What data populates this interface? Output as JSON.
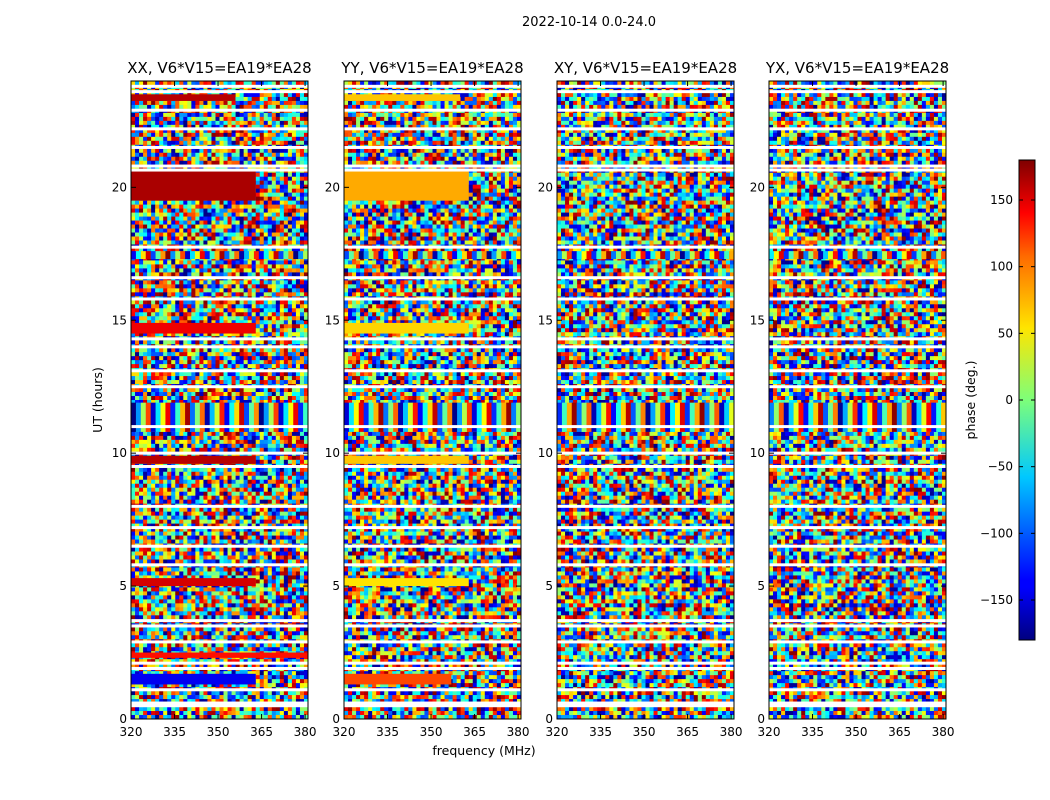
{
  "chart_data": {
    "type": "heatmap",
    "suptitle": "2022-10-14 0.0-24.0",
    "xlabel": "frequency (MHz)",
    "ylabel": "UT (hours)",
    "xlim": [
      320,
      381
    ],
    "ylim": [
      0,
      24
    ],
    "xticks": [
      "320",
      "335",
      "350",
      "365",
      "380"
    ],
    "yticks": [
      "0",
      "5",
      "10",
      "15",
      "20"
    ],
    "xtick_values": [
      320,
      335,
      350,
      365,
      380
    ],
    "ytick_values": [
      0,
      5,
      10,
      15,
      20
    ],
    "panels": [
      {
        "title": "XX, V6*V15=EA19*EA28",
        "coherent_phase_bands": [
          {
            "t0": 23.25,
            "t1": 23.5,
            "f1": 356,
            "phase": 160
          },
          {
            "t0": 19.5,
            "t1": 20.6,
            "f1": 363,
            "phase": 165
          },
          {
            "t0": 14.5,
            "t1": 14.9,
            "f1": 363,
            "phase": 140
          },
          {
            "t0": 9.6,
            "t1": 9.9,
            "f1": 363,
            "phase": 160
          },
          {
            "t0": 5.0,
            "t1": 5.3,
            "f1": 363,
            "phase": 150
          },
          {
            "t0": 2.3,
            "t1": 2.5,
            "f1": 381,
            "phase": 130
          },
          {
            "t0": 1.3,
            "t1": 1.7,
            "f1": 363,
            "phase": -140
          }
        ]
      },
      {
        "title": "YY, V6*V15=EA19*EA28",
        "coherent_phase_bands": [
          {
            "t0": 23.25,
            "t1": 23.5,
            "f1": 360,
            "phase": 65
          },
          {
            "t0": 19.5,
            "t1": 20.6,
            "f1": 363,
            "phase": 75
          },
          {
            "t0": 14.5,
            "t1": 14.9,
            "f1": 363,
            "phase": 60
          },
          {
            "t0": 9.6,
            "t1": 9.9,
            "f1": 363,
            "phase": 65
          },
          {
            "t0": 5.0,
            "t1": 5.3,
            "f1": 363,
            "phase": 55
          },
          {
            "t0": 1.3,
            "t1": 1.7,
            "f1": 357,
            "phase": 110
          }
        ]
      },
      {
        "title": "XY, V6*V15=EA19*EA28",
        "coherent_phase_bands": []
      },
      {
        "title": "YX, V6*V15=EA19*EA28",
        "coherent_phase_bands": []
      }
    ],
    "fringe_band_hours": [
      [
        10.8,
        11.9
      ],
      [
        17.3,
        17.6
      ]
    ],
    "flagged_rows_hours": [
      23.8,
      23.6,
      22.9,
      22.2,
      21.5,
      20.8,
      20.65,
      17.75,
      16.6,
      15.8,
      14.3,
      14.0,
      13.1,
      12.5,
      11.0,
      10.0,
      9.5,
      8.0,
      7.2,
      6.5,
      5.8,
      3.7,
      3.5,
      2.9,
      2.1,
      1.9,
      1.1,
      0.6,
      0.5
    ],
    "colorbar": {
      "label": "phase (deg.)",
      "ticks": [
        "150",
        "100",
        "50",
        "0",
        "−50",
        "−100",
        "−150"
      ],
      "tick_values": [
        150,
        100,
        50,
        0,
        -50,
        -100,
        -150
      ],
      "range": [
        -180,
        180
      ],
      "colormap": "jet"
    }
  }
}
